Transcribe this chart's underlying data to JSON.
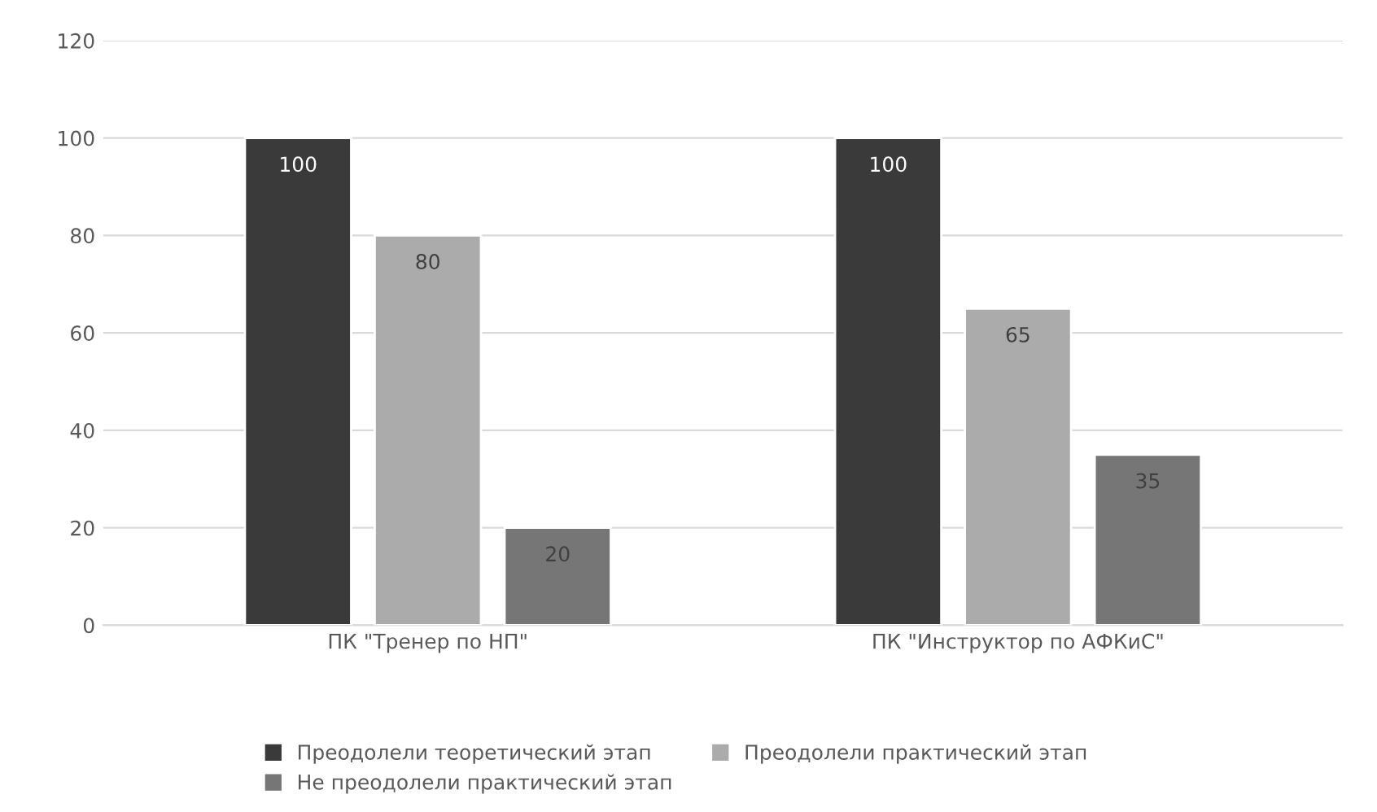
{
  "chart_data": {
    "type": "bar",
    "categories": [
      "ПК \"Тренер по НП\"",
      "ПК \"Инструктор по АФКиС\""
    ],
    "series": [
      {
        "name": "Преодолели теоретический этап",
        "color": "#3a3a3a",
        "values": [
          100,
          100
        ]
      },
      {
        "name": "Преодолели практический этап",
        "color": "#ababab",
        "values": [
          80,
          65
        ]
      },
      {
        "name": "Не преодолели практический этап",
        "color": "#767676",
        "values": [
          20,
          35
        ]
      }
    ],
    "ylim": [
      0,
      120
    ],
    "yticks": [
      0,
      20,
      40,
      60,
      80,
      100,
      120
    ],
    "grid": "y",
    "legend": "bottom",
    "data_labels": true
  }
}
